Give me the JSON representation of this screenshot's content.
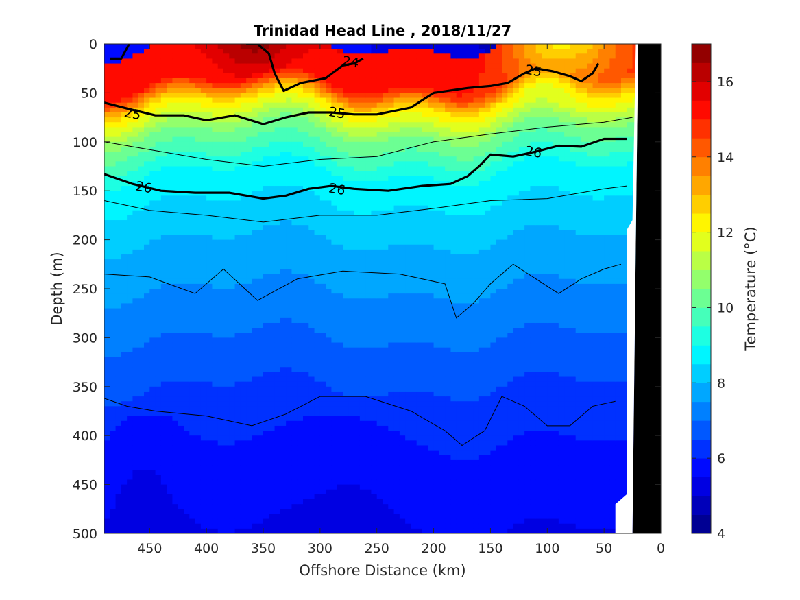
{
  "chart_data": {
    "type": "heatmap",
    "title": "Trinidad Head Line , 2018/11/27",
    "xlabel": "Offshore Distance (km)",
    "ylabel": "Depth (m)",
    "xlim": [
      490,
      0
    ],
    "ylim": [
      0,
      500
    ],
    "x_reversed": true,
    "y_reversed": true,
    "x_ticks": [
      "450",
      "400",
      "350",
      "300",
      "250",
      "200",
      "150",
      "100",
      "50",
      "0"
    ],
    "x_tick_values": [
      450,
      400,
      350,
      300,
      250,
      200,
      150,
      100,
      50,
      0
    ],
    "y_ticks": [
      "0",
      "50",
      "100",
      "150",
      "200",
      "250",
      "300",
      "350",
      "400",
      "450",
      "500"
    ],
    "y_tick_values": [
      0,
      50,
      100,
      150,
      200,
      250,
      300,
      350,
      400,
      450,
      500
    ],
    "colorbar": {
      "label": "Temperature (°C)",
      "range": [
        4,
        17
      ],
      "ticks": [
        "4",
        "6",
        "8",
        "10",
        "12",
        "14",
        "16"
      ],
      "tick_values": [
        4,
        6,
        8,
        10,
        12,
        14,
        16
      ],
      "colormap": "jet",
      "step": 0.5
    },
    "temperature_depth_profile": [
      {
        "depth": 0,
        "temperature": 15.5
      },
      {
        "depth": 40,
        "temperature": 15.0
      },
      {
        "depth": 60,
        "temperature": 12.5
      },
      {
        "depth": 90,
        "temperature": 10.5
      },
      {
        "depth": 130,
        "temperature": 9.0
      },
      {
        "depth": 180,
        "temperature": 8.2
      },
      {
        "depth": 250,
        "temperature": 7.5
      },
      {
        "depth": 320,
        "temperature": 6.8
      },
      {
        "depth": 380,
        "temperature": 6.2
      },
      {
        "depth": 440,
        "temperature": 5.8
      },
      {
        "depth": 500,
        "temperature": 5.5
      }
    ],
    "density_contours": [
      {
        "label": "24",
        "points": [
          [
            485,
            15
          ],
          [
            475,
            15
          ],
          [
            468,
            0
          ],
          null,
          [
            365,
            0
          ],
          [
            355,
            0
          ],
          [
            345,
            10
          ],
          [
            340,
            30
          ],
          [
            332,
            48
          ],
          [
            317,
            40
          ],
          [
            295,
            35
          ],
          [
            280,
            22
          ],
          [
            270,
            20
          ],
          [
            262,
            15
          ]
        ],
        "label_positions": [
          [
            273,
            18
          ]
        ]
      },
      {
        "label": "25",
        "points": [
          [
            490,
            60
          ],
          [
            470,
            66
          ],
          [
            445,
            73
          ],
          [
            420,
            73
          ],
          [
            400,
            78
          ],
          [
            375,
            73
          ],
          [
            350,
            82
          ],
          [
            330,
            75
          ],
          [
            310,
            70
          ],
          [
            290,
            70
          ],
          [
            270,
            72
          ],
          [
            250,
            72
          ],
          [
            220,
            65
          ],
          [
            200,
            50
          ],
          [
            170,
            45
          ],
          [
            150,
            43
          ],
          [
            135,
            40
          ],
          [
            120,
            30
          ],
          [
            110,
            25
          ],
          [
            95,
            28
          ],
          [
            80,
            33
          ],
          [
            70,
            38
          ],
          [
            60,
            30
          ],
          [
            55,
            20
          ]
        ],
        "label_positions": [
          [
            465,
            71
          ],
          [
            285,
            70
          ],
          [
            112,
            27
          ]
        ]
      },
      {
        "label": "26",
        "points": [
          [
            490,
            133
          ],
          [
            465,
            143
          ],
          [
            440,
            150
          ],
          [
            410,
            152
          ],
          [
            380,
            152
          ],
          [
            350,
            158
          ],
          [
            330,
            155
          ],
          [
            310,
            148
          ],
          [
            290,
            145
          ],
          [
            270,
            148
          ],
          [
            240,
            150
          ],
          [
            210,
            145
          ],
          [
            185,
            143
          ],
          [
            170,
            135
          ],
          [
            160,
            125
          ],
          [
            150,
            113
          ],
          [
            130,
            115
          ],
          [
            110,
            110
          ],
          [
            90,
            104
          ],
          [
            70,
            105
          ],
          [
            50,
            97
          ],
          [
            30,
            97
          ]
        ],
        "label_positions": [
          [
            455,
            146
          ],
          [
            285,
            148
          ],
          [
            112,
            110
          ]
        ]
      }
    ],
    "thin_contours": [
      [
        [
          490,
          100
        ],
        [
          450,
          108
        ],
        [
          400,
          118
        ],
        [
          350,
          125
        ],
        [
          300,
          118
        ],
        [
          250,
          115
        ],
        [
          200,
          100
        ],
        [
          150,
          92
        ],
        [
          100,
          85
        ],
        [
          50,
          80
        ],
        [
          25,
          75
        ]
      ],
      [
        [
          490,
          160
        ],
        [
          450,
          170
        ],
        [
          400,
          175
        ],
        [
          350,
          182
        ],
        [
          300,
          175
        ],
        [
          250,
          175
        ],
        [
          200,
          168
        ],
        [
          150,
          160
        ],
        [
          100,
          158
        ],
        [
          50,
          148
        ],
        [
          30,
          145
        ]
      ],
      [
        [
          490,
          235
        ],
        [
          450,
          238
        ],
        [
          410,
          255
        ],
        [
          385,
          230
        ],
        [
          355,
          262
        ],
        [
          320,
          240
        ],
        [
          280,
          232
        ],
        [
          230,
          235
        ],
        [
          190,
          245
        ],
        [
          180,
          280
        ],
        [
          165,
          265
        ],
        [
          150,
          245
        ],
        [
          130,
          225
        ],
        [
          110,
          240
        ],
        [
          90,
          255
        ],
        [
          70,
          240
        ],
        [
          50,
          230
        ],
        [
          35,
          225
        ]
      ],
      [
        [
          490,
          362
        ],
        [
          470,
          370
        ],
        [
          445,
          375
        ],
        [
          400,
          380
        ],
        [
          360,
          390
        ],
        [
          330,
          378
        ],
        [
          300,
          360
        ],
        [
          260,
          360
        ],
        [
          220,
          375
        ],
        [
          190,
          395
        ],
        [
          175,
          410
        ],
        [
          155,
          395
        ],
        [
          140,
          360
        ],
        [
          120,
          370
        ],
        [
          100,
          390
        ],
        [
          80,
          390
        ],
        [
          60,
          370
        ],
        [
          40,
          365
        ]
      ]
    ],
    "seafloor": {
      "bottom_depth": 500,
      "points": [
        [
          20,
          0
        ],
        [
          21,
          100
        ],
        [
          23,
          300
        ],
        [
          25,
          500
        ]
      ]
    }
  }
}
